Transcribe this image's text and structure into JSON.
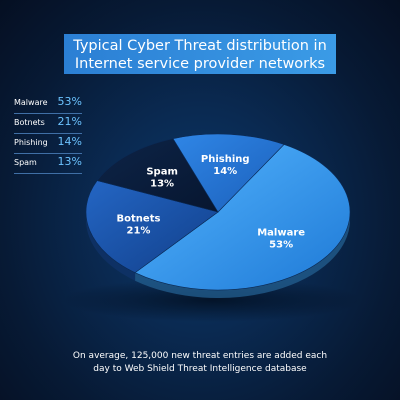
{
  "title": {
    "line1": "Typical Cyber Threat distribution in",
    "line2": "Internet service provider networks"
  },
  "legend": [
    {
      "name": "Malware",
      "value": "53%"
    },
    {
      "name": "Botnets",
      "value": "21%"
    },
    {
      "name": "Phishing",
      "value": "14%"
    },
    {
      "name": "Spam",
      "value": "13%"
    }
  ],
  "footer": {
    "line1": "On average, 125,000 new threat entries are added each",
    "line2": "day to Web Shield Threat Intelligence database"
  },
  "colors": {
    "malware": "#3b9ff0",
    "botnets": "#1a55b0",
    "phishing": "#2270d0",
    "spam": "#0a1d3a",
    "accent": "#6cc3ff"
  },
  "chart_data": {
    "type": "pie",
    "title": "Typical Cyber Threat distribution in Internet service provider networks",
    "slices": [
      {
        "label": "Malware",
        "value": 53,
        "value_label": "53%",
        "color": "#3b9ff0"
      },
      {
        "label": "Botnets",
        "value": 21,
        "value_label": "21%",
        "color": "#1a55b0"
      },
      {
        "label": "Spam",
        "value": 13,
        "value_label": "13%",
        "color": "#0a1d3a"
      },
      {
        "label": "Phishing",
        "value": 14,
        "value_label": "14%",
        "color": "#2270d0"
      }
    ],
    "legend_position": "left"
  }
}
